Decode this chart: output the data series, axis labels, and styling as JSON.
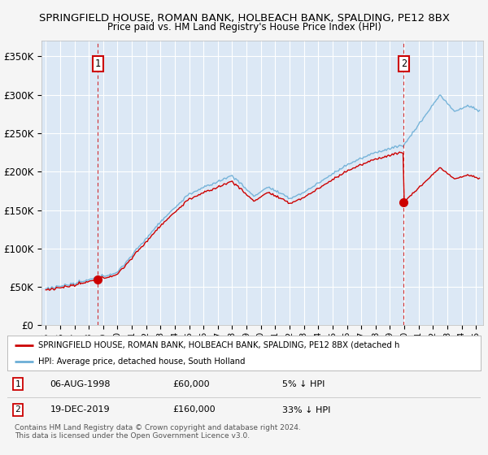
{
  "title": "SPRINGFIELD HOUSE, ROMAN BANK, HOLBEACH BANK, SPALDING, PE12 8BX",
  "subtitle": "Price paid vs. HM Land Registry's House Price Index (HPI)",
  "legend_line1": "SPRINGFIELD HOUSE, ROMAN BANK, HOLBEACH BANK, SPALDING, PE12 8BX (detached h",
  "legend_line2": "HPI: Average price, detached house, South Holland",
  "footer": "Contains HM Land Registry data © Crown copyright and database right 2024.\nThis data is licensed under the Open Government Licence v3.0.",
  "purchase1_date": "06-AUG-1998",
  "purchase1_price": 60000,
  "purchase1_pct": "5% ↓ HPI",
  "purchase2_date": "19-DEC-2019",
  "purchase2_price": 160000,
  "purchase2_pct": "33% ↓ HPI",
  "bg_color": "#f5f5f5",
  "plot_bg": "#dce8f5",
  "hpi_color": "#6baed6",
  "price_color": "#cc0000",
  "grid_color": "#ffffff",
  "ylim": [
    0,
    370000
  ],
  "yticks": [
    0,
    50000,
    100000,
    150000,
    200000,
    250000,
    300000,
    350000
  ],
  "ytick_labels": [
    "£0",
    "£50K",
    "£100K",
    "£150K",
    "£200K",
    "£250K",
    "£300K",
    "£350K"
  ],
  "xlim_start": 1994.7,
  "xlim_end": 2025.5
}
